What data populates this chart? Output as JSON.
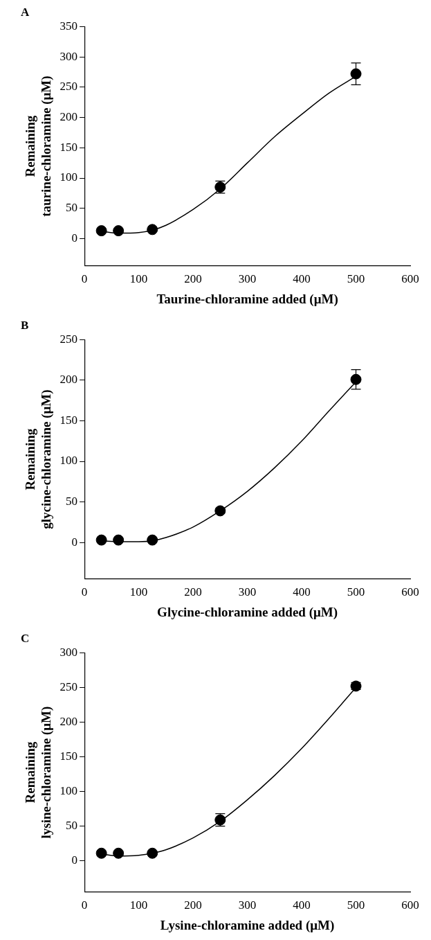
{
  "chart_data": [
    {
      "type": "scatter",
      "title": "A",
      "xlabel": "Taurine-chloramine added (μM)",
      "ylabel": "Remaining\ntaurine-chloramine (μM)",
      "xlim": [
        0,
        600
      ],
      "xticks": [
        0,
        100,
        200,
        300,
        400,
        500,
        600
      ],
      "ylim": [
        -45,
        350
      ],
      "yticks": [
        0,
        50,
        100,
        150,
        200,
        250,
        300,
        350
      ],
      "grid": false,
      "legend": false,
      "series": [
        {
          "type": "scatter",
          "color": "#000000",
          "marker": "circle",
          "x": [
            31.25,
            62.5,
            125,
            250,
            500
          ],
          "values": [
            13,
            13,
            15,
            85,
            272
          ],
          "errors": [
            null,
            null,
            null,
            10,
            18
          ]
        },
        {
          "type": "line",
          "color": "#000000",
          "marker": "none",
          "line_style": "solid",
          "x": [
            31.25,
            62.5,
            100,
            125,
            150,
            200,
            250,
            300,
            350,
            400,
            450,
            500
          ],
          "values": [
            12,
            9,
            10,
            14,
            22,
            48,
            82,
            125,
            168,
            205,
            240,
            268
          ]
        }
      ]
    },
    {
      "type": "scatter",
      "title": "B",
      "xlabel": "Glycine-chloramine added (μM)",
      "ylabel": "Remaining\nglycine-chloramine (μM)",
      "xlim": [
        0,
        600
      ],
      "xticks": [
        0,
        100,
        200,
        300,
        400,
        500,
        600
      ],
      "ylim": [
        -45,
        250
      ],
      "yticks": [
        0,
        50,
        100,
        150,
        200,
        250
      ],
      "grid": false,
      "legend": false,
      "series": [
        {
          "type": "scatter",
          "color": "#000000",
          "marker": "circle",
          "x": [
            31.25,
            62.5,
            125,
            250,
            500
          ],
          "values": [
            3,
            3,
            3,
            39,
            201
          ],
          "errors": [
            null,
            null,
            null,
            3,
            12
          ]
        },
        {
          "type": "line",
          "color": "#000000",
          "marker": "none",
          "line_style": "solid",
          "x": [
            31.25,
            62.5,
            100,
            125,
            150,
            200,
            250,
            300,
            350,
            400,
            450,
            500
          ],
          "values": [
            2,
            1,
            1,
            2,
            6,
            19,
            39,
            63,
            92,
            125,
            162,
            198
          ]
        }
      ]
    },
    {
      "type": "scatter",
      "title": "C",
      "xlabel": "Lysine-chloramine added (μM)",
      "ylabel": "Remaining\nlysine-chloramine (μM)",
      "xlim": [
        0,
        600
      ],
      "xticks": [
        0,
        100,
        200,
        300,
        400,
        500,
        600
      ],
      "ylim": [
        -45,
        300
      ],
      "yticks": [
        0,
        50,
        100,
        150,
        200,
        250,
        300
      ],
      "grid": false,
      "legend": false,
      "series": [
        {
          "type": "scatter",
          "color": "#000000",
          "marker": "circle",
          "x": [
            31.25,
            62.5,
            125,
            250,
            500
          ],
          "values": [
            11,
            11,
            11,
            59,
            252
          ],
          "errors": [
            null,
            null,
            null,
            9,
            5
          ]
        },
        {
          "type": "line",
          "color": "#000000",
          "marker": "none",
          "line_style": "solid",
          "x": [
            31.25,
            62.5,
            100,
            125,
            150,
            200,
            250,
            300,
            350,
            400,
            450,
            500
          ],
          "values": [
            10,
            7,
            8,
            11,
            16,
            33,
            57,
            88,
            123,
            162,
            205,
            250
          ]
        }
      ]
    }
  ]
}
